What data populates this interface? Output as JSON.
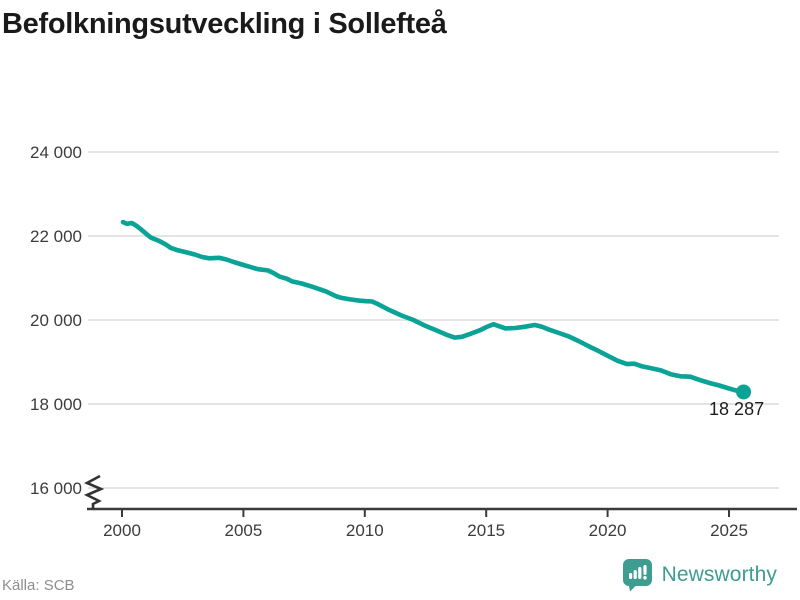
{
  "header": {
    "title": "Befolkningsutveckling i Sollefteå"
  },
  "footer": {
    "source": "Källa: SCB",
    "brand": "Newsworthy"
  },
  "colors": {
    "line": "#0aa396",
    "grid": "#e4e4e4",
    "axis": "#3b3b3b",
    "brand_teal": "#3e9c90"
  },
  "chart_data": {
    "type": "line",
    "title": "Befolkningsutveckling i Sollefteå",
    "source": "Källa: SCB",
    "grid": "horizontal",
    "legend": "none",
    "axis_break_bottom_left": true,
    "xlim": [
      1998.6,
      2027.8
    ],
    "ylim": [
      15600,
      24200
    ],
    "x_ticks": [
      2000,
      2005,
      2010,
      2015,
      2020,
      2025
    ],
    "y_ticks": [
      16000,
      18000,
      20000,
      22000,
      24000
    ],
    "y_tick_labels": [
      "16 000",
      "18 000",
      "20 000",
      "22 000",
      "24 000"
    ],
    "end_label": "18 287",
    "last_value": 18287,
    "series": [
      {
        "name": "Befolkning",
        "color": "#0aa396",
        "points": [
          [
            2000.04,
            22330
          ],
          [
            2000.2,
            22290
          ],
          [
            2000.4,
            22310
          ],
          [
            2000.6,
            22240
          ],
          [
            2000.8,
            22150
          ],
          [
            2001.0,
            22050
          ],
          [
            2001.2,
            21960
          ],
          [
            2001.5,
            21890
          ],
          [
            2001.8,
            21800
          ],
          [
            2002.0,
            21720
          ],
          [
            2002.3,
            21660
          ],
          [
            2002.6,
            21620
          ],
          [
            2003.0,
            21560
          ],
          [
            2003.3,
            21500
          ],
          [
            2003.6,
            21470
          ],
          [
            2004.0,
            21480
          ],
          [
            2004.3,
            21440
          ],
          [
            2004.6,
            21380
          ],
          [
            2005.0,
            21310
          ],
          [
            2005.3,
            21260
          ],
          [
            2005.6,
            21210
          ],
          [
            2006.0,
            21180
          ],
          [
            2006.2,
            21130
          ],
          [
            2006.5,
            21030
          ],
          [
            2006.8,
            20980
          ],
          [
            2007.0,
            20920
          ],
          [
            2007.4,
            20870
          ],
          [
            2007.8,
            20800
          ],
          [
            2008.0,
            20760
          ],
          [
            2008.4,
            20680
          ],
          [
            2008.8,
            20570
          ],
          [
            2009.0,
            20530
          ],
          [
            2009.4,
            20490
          ],
          [
            2009.8,
            20460
          ],
          [
            2010.0,
            20450
          ],
          [
            2010.3,
            20440
          ],
          [
            2010.5,
            20390
          ],
          [
            2011.0,
            20240
          ],
          [
            2011.5,
            20110
          ],
          [
            2012.0,
            20000
          ],
          [
            2012.5,
            19860
          ],
          [
            2013.0,
            19740
          ],
          [
            2013.4,
            19640
          ],
          [
            2013.7,
            19580
          ],
          [
            2014.0,
            19600
          ],
          [
            2014.4,
            19680
          ],
          [
            2014.8,
            19770
          ],
          [
            2015.0,
            19830
          ],
          [
            2015.3,
            19900
          ],
          [
            2015.5,
            19860
          ],
          [
            2015.8,
            19800
          ],
          [
            2016.2,
            19810
          ],
          [
            2016.6,
            19840
          ],
          [
            2017.0,
            19880
          ],
          [
            2017.3,
            19840
          ],
          [
            2017.6,
            19770
          ],
          [
            2018.0,
            19690
          ],
          [
            2018.4,
            19610
          ],
          [
            2018.8,
            19500
          ],
          [
            2019.2,
            19380
          ],
          [
            2019.6,
            19270
          ],
          [
            2020.0,
            19150
          ],
          [
            2020.4,
            19030
          ],
          [
            2020.8,
            18950
          ],
          [
            2021.1,
            18960
          ],
          [
            2021.4,
            18900
          ],
          [
            2021.8,
            18850
          ],
          [
            2022.2,
            18800
          ],
          [
            2022.6,
            18710
          ],
          [
            2023.0,
            18660
          ],
          [
            2023.4,
            18650
          ],
          [
            2023.8,
            18570
          ],
          [
            2024.2,
            18500
          ],
          [
            2024.6,
            18440
          ],
          [
            2025.0,
            18370
          ],
          [
            2025.3,
            18320
          ],
          [
            2025.6,
            18287
          ]
        ]
      }
    ]
  }
}
